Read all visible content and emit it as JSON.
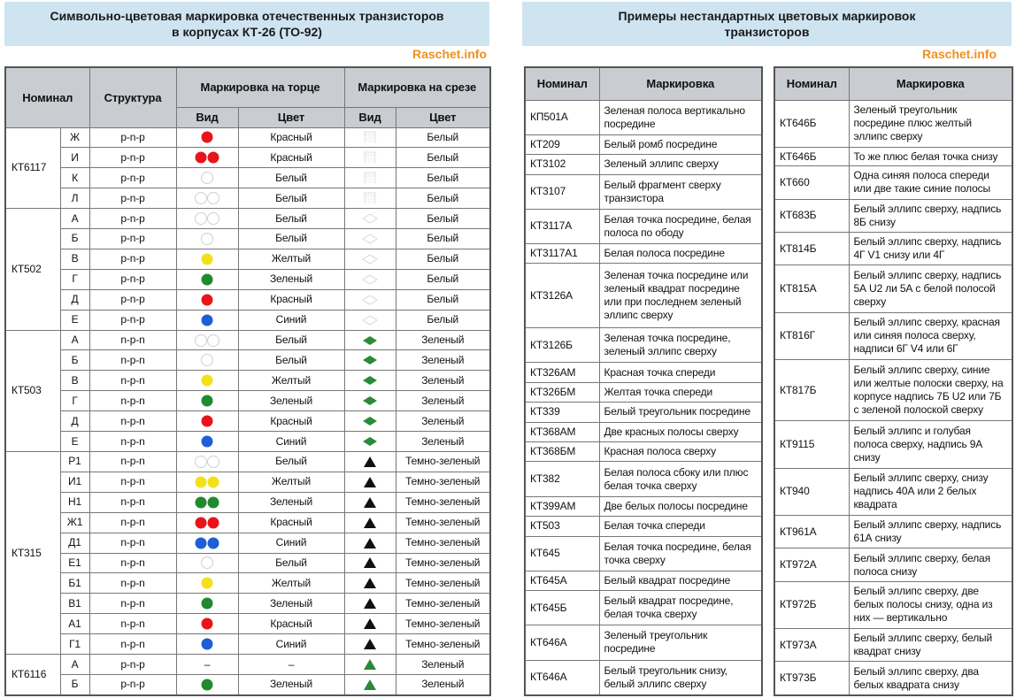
{
  "left": {
    "title": [
      "Символьно-цветовая маркировка отечественных транзисторов",
      "в корпусах КТ-26 (ТО-92)"
    ],
    "watermark": "Raschet.info",
    "headers": {
      "nominal": "Номинал",
      "structure": "Структура",
      "end": "Маркировка на торце",
      "cut": "Маркировка на срезе",
      "end_view": "Вид",
      "end_color": "Цвет",
      "cut_view": "Вид",
      "cut_color": "Цвет"
    },
    "groups": [
      {
        "name": "КТ6117",
        "rows": [
          {
            "code": "Ж",
            "structure": "p-n-p",
            "end_color": "Красный",
            "cut_color": "Белый"
          },
          {
            "code": "И",
            "structure": "p-n-p",
            "end_color": "Красный",
            "cut_color": "Белый"
          },
          {
            "code": "К",
            "structure": "p-n-p",
            "end_color": "Белый",
            "cut_color": "Белый"
          },
          {
            "code": "Л",
            "structure": "p-n-p",
            "end_color": "Белый",
            "cut_color": "Белый"
          }
        ]
      },
      {
        "name": "КТ502",
        "rows": [
          {
            "code": "А",
            "structure": "p-n-p",
            "end_color": "Белый",
            "cut_color": "Белый"
          },
          {
            "code": "Б",
            "structure": "p-n-p",
            "end_color": "Белый",
            "cut_color": "Белый"
          },
          {
            "code": "В",
            "structure": "p-n-p",
            "end_color": "Желтый",
            "cut_color": "Белый"
          },
          {
            "code": "Г",
            "structure": "p-n-p",
            "end_color": "Зеленый",
            "cut_color": "Белый"
          },
          {
            "code": "Д",
            "structure": "p-n-p",
            "end_color": "Красный",
            "cut_color": "Белый"
          },
          {
            "code": "Е",
            "structure": "p-n-p",
            "end_color": "Синий",
            "cut_color": "Белый"
          }
        ]
      },
      {
        "name": "КТ503",
        "rows": [
          {
            "code": "А",
            "structure": "n-p-n",
            "end_color": "Белый",
            "cut_color": "Зеленый"
          },
          {
            "code": "Б",
            "structure": "n-p-n",
            "end_color": "Белый",
            "cut_color": "Зеленый"
          },
          {
            "code": "В",
            "structure": "n-p-n",
            "end_color": "Желтый",
            "cut_color": "Зеленый"
          },
          {
            "code": "Г",
            "structure": "n-p-n",
            "end_color": "Зеленый",
            "cut_color": "Зеленый"
          },
          {
            "code": "Д",
            "structure": "n-p-n",
            "end_color": "Красный",
            "cut_color": "Зеленый"
          },
          {
            "code": "Е",
            "structure": "n-p-n",
            "end_color": "Синий",
            "cut_color": "Зеленый"
          }
        ]
      },
      {
        "name": "КТ315",
        "rows": [
          {
            "code": "Р1",
            "structure": "n-p-n",
            "end_color": "Белый",
            "cut_color": "Темно-зеленый"
          },
          {
            "code": "И1",
            "structure": "n-p-n",
            "end_color": "Желтый",
            "cut_color": "Темно-зеленый"
          },
          {
            "code": "Н1",
            "structure": "n-p-n",
            "end_color": "Зеленый",
            "cut_color": "Темно-зеленый"
          },
          {
            "code": "Ж1",
            "structure": "n-p-n",
            "end_color": "Красный",
            "cut_color": "Темно-зеленый"
          },
          {
            "code": "Д1",
            "structure": "n-p-n",
            "end_color": "Синий",
            "cut_color": "Темно-зеленый"
          },
          {
            "code": "Е1",
            "structure": "n-p-n",
            "end_color": "Белый",
            "cut_color": "Темно-зеленый"
          },
          {
            "code": "Б1",
            "structure": "n-p-n",
            "end_color": "Желтый",
            "cut_color": "Темно-зеленый"
          },
          {
            "code": "В1",
            "structure": "n-p-n",
            "end_color": "Зеленый",
            "cut_color": "Темно-зеленый"
          },
          {
            "code": "А1",
            "structure": "n-p-n",
            "end_color": "Красный",
            "cut_color": "Темно-зеленый"
          },
          {
            "code": "Г1",
            "structure": "n-p-n",
            "end_color": "Синий",
            "cut_color": "Темно-зеленый"
          }
        ]
      },
      {
        "name": "КТ6116",
        "rows": [
          {
            "code": "А",
            "structure": "p-n-p",
            "end_view": "–",
            "end_color": "–",
            "cut_color": "Зеленый"
          },
          {
            "code": "Б",
            "structure": "p-n-p",
            "end_color": "Зеленый",
            "cut_color": "Зеленый"
          }
        ]
      }
    ]
  },
  "right": {
    "title": [
      "Примеры нестандартных цветовых маркировок",
      "транзисторов"
    ],
    "watermark": "Raschet.info",
    "tables": [
      {
        "headers": [
          "Номинал",
          "Маркировка"
        ],
        "rows": [
          [
            "КП501А",
            "Зеленая полоса вертикально посредине"
          ],
          [
            "КТ209",
            "Белый ромб посредине"
          ],
          [
            "КТ3102",
            "Зеленый эллипс сверху"
          ],
          [
            "КТ3107",
            "Белый фрагмент сверху транзистора"
          ],
          [
            "КТ3117А",
            "Белая точка посредине, белая полоса по ободу"
          ],
          [
            "КТ3117А1",
            "Белая полоса посредине"
          ],
          [
            "КТ3126А",
            "Зеленая точка посредине или зеленый квадрат посредине или при последнем зеленый эллипс сверху"
          ],
          [
            "КТ3126Б",
            "Зеленая точка посредине, зеленый эллипс сверху"
          ],
          [
            "КТ326АМ",
            "Красная точка спереди"
          ],
          [
            "КТ326БМ",
            "Желтая точка спереди"
          ],
          [
            "КТ339",
            "Белый треугольник посредине"
          ],
          [
            "КТ368АМ",
            "Две красных полосы сверху"
          ],
          [
            "КТ368БМ",
            "Красная полоса сверху"
          ],
          [
            "КТ382",
            "Белая полоса сбоку или плюс белая точка сверху"
          ],
          [
            "КТ399АМ",
            "Две белых полосы посредине"
          ],
          [
            "КТ503",
            "Белая точка спереди"
          ],
          [
            "КТ645",
            "Белая точка посредине, белая точка сверху"
          ],
          [
            "КТ645А",
            "Белый квадрат посредине"
          ],
          [
            "КТ645Б",
            "Белый квадрат посредине, белая точка сверху"
          ],
          [
            "КТ646А",
            "Зеленый треугольник посредине"
          ],
          [
            "КТ646А",
            "Белый треугольник снизу, белый эллипс сверху"
          ]
        ]
      },
      {
        "headers": [
          "Номинал",
          "Маркировка"
        ],
        "rows": [
          [
            "КТ646Б",
            "Зеленый треугольник посредине плюс желтый эллипс сверху"
          ],
          [
            "КТ646Б",
            "То же плюс белая точка снизу"
          ],
          [
            "КТ660",
            "Одна синяя полоса спереди или две такие синие полосы"
          ],
          [
            "КТ683Б",
            "Белый эллипс сверху, надпись 8Б снизу"
          ],
          [
            "КТ814Б",
            "Белый эллипс сверху, надпись 4Г V1 снизу или 4Г"
          ],
          [
            "КТ815А",
            "Белый эллипс сверху, надпись 5А U2 ли 5А с белой полосой сверху"
          ],
          [
            "КТ816Г",
            "Белый эллипс сверху, красная или синяя полоса сверху, надписи 6Г V4 или 6Г"
          ],
          [
            "КТ817Б",
            "Белый эллипс сверху, синие или желтые полоски сверху, на корпусе надпись 7Б U2 или 7Б с зеленой полоской сверху"
          ],
          [
            "КТ9115",
            "Белый эллипс и голубая полоса сверху, надпись 9А снизу"
          ],
          [
            "КТ940",
            "Белый эллипс сверху, снизу надпись 40А или 2 белых квадрата"
          ],
          [
            "КТ961А",
            "Белый эллипс сверху, надпись 61А снизу"
          ],
          [
            "КТ972А",
            "Белый эллипс сверху, белая полоса снизу"
          ],
          [
            "КТ972Б",
            "Белый эллипс сверху, две белых полосы снизу, одна из них — вертикально"
          ],
          [
            "КТ973А",
            "Белый эллипс сверху, белый квадрат снизу"
          ],
          [
            "КТ973Б",
            "Белый эллипс сверху, два белых квадрата снизу"
          ]
        ]
      }
    ]
  }
}
